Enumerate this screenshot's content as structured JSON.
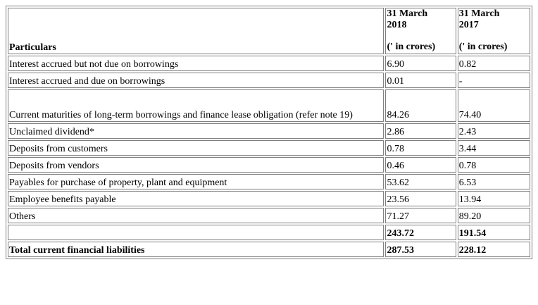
{
  "table": {
    "header": {
      "particulars": "Particulars",
      "col_2018": {
        "line1": "31 March",
        "line2": "2018",
        "units": "(' in crores)"
      },
      "col_2017": {
        "line1": "31 March",
        "line2": "2017",
        "units": "(' in crores)"
      }
    },
    "rows": [
      {
        "label": "Interest accrued but not due on borrowings",
        "v2018": "6.90",
        "v2017": "0.82"
      },
      {
        "label": "Interest accrued and due on borrowings",
        "v2018": "0.01",
        "v2017": "-"
      },
      {
        "label": "Current maturities of long-term borrowings and finance lease obligation (refer note 19)",
        "v2018": "84.26",
        "v2017": "74.40"
      },
      {
        "label": "Unclaimed dividend*",
        "v2018": "2.86",
        "v2017": "2.43"
      },
      {
        "label": "Deposits from customers",
        "v2018": "0.78",
        "v2017": "3.44"
      },
      {
        "label": "Deposits from vendors",
        "v2018": "0.46",
        "v2017": "0.78"
      },
      {
        "label": "Payables for purchase of property, plant and equipment",
        "v2018": "53.62",
        "v2017": "6.53"
      },
      {
        "label": "Employee benefits payable",
        "v2018": "23.56",
        "v2017": "13.94"
      },
      {
        "label": "Others",
        "v2018": "71.27",
        "v2017": "89.20"
      }
    ],
    "subtotal": {
      "label": "",
      "v2018": "243.72",
      "v2017": "191.54"
    },
    "total": {
      "label": "Total current financial liabilities",
      "v2018": "287.53",
      "v2017": "228.12"
    }
  }
}
